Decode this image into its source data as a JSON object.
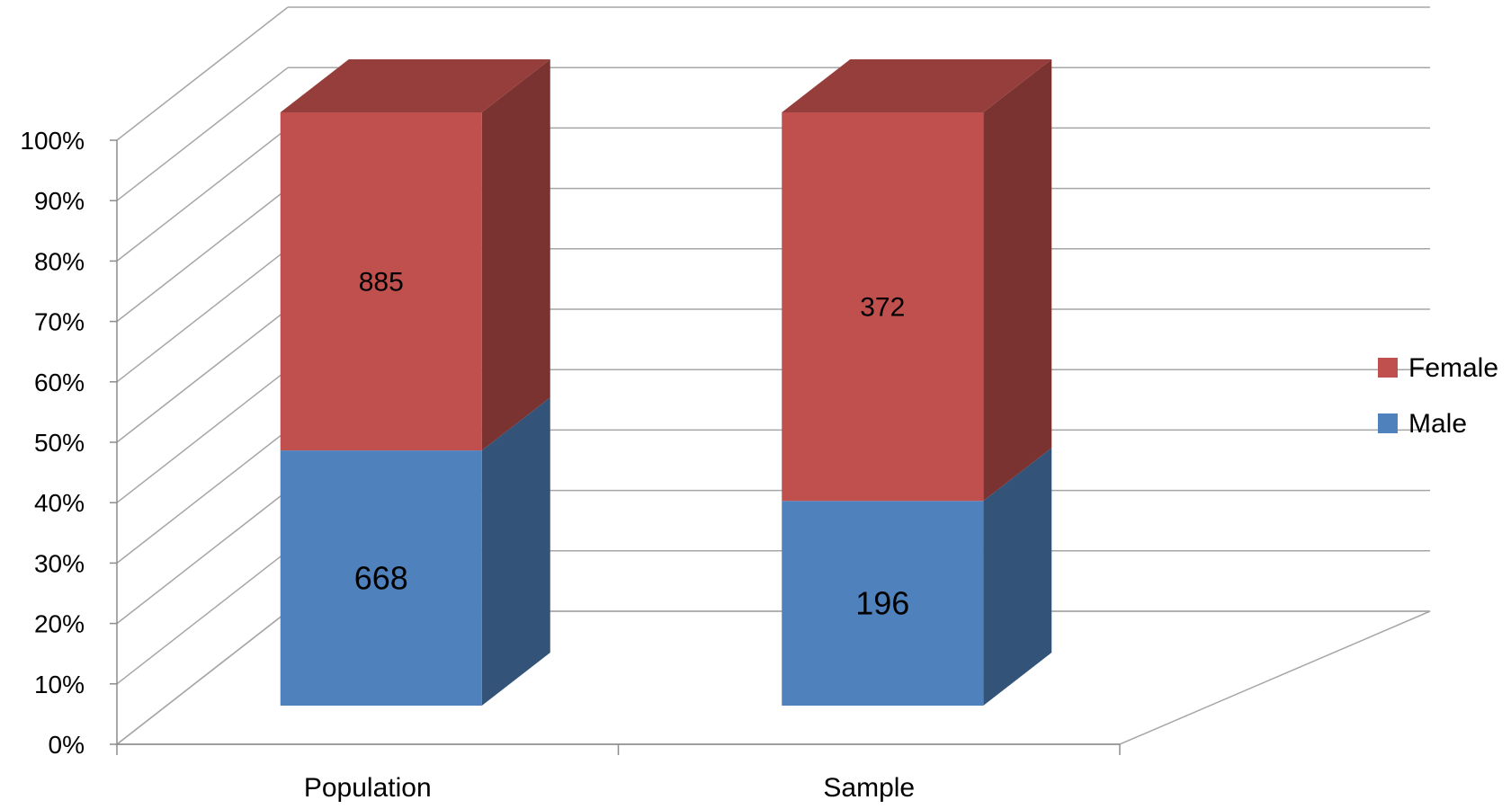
{
  "chart_data": {
    "type": "bar",
    "stacked": "percent",
    "three_d": true,
    "categories": [
      "Population",
      "Sample"
    ],
    "series": [
      {
        "name": "Male",
        "values": [
          668,
          196
        ],
        "color": "#4F81BD"
      },
      {
        "name": "Female",
        "values": [
          885,
          372
        ],
        "color": "#C0504D"
      }
    ],
    "y_ticks": [
      "0%",
      "10%",
      "20%",
      "30%",
      "40%",
      "50%",
      "60%",
      "70%",
      "80%",
      "90%",
      "100%"
    ],
    "ylim": [
      0,
      100
    ],
    "grid": true,
    "legend": {
      "position": "right",
      "order": [
        "Female",
        "Male"
      ]
    },
    "title": "",
    "xlabel": "",
    "ylabel": ""
  }
}
